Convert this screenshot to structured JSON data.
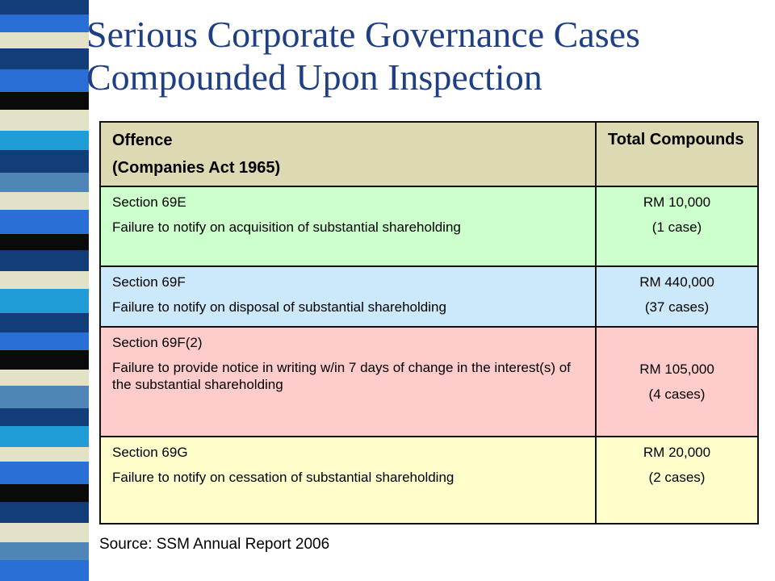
{
  "title": "Serious Corporate Governance Cases Compounded Upon Inspection",
  "table": {
    "header": {
      "offence_line1": "Offence",
      "offence_line2": "(Companies Act 1965)",
      "total": "Total Compounds"
    },
    "rows": [
      {
        "section": "Section 69E",
        "description": "Failure to notify on acquisition of substantial shareholding",
        "amount": "RM 10,000",
        "cases": "(1 case)",
        "bg": "#ccffcc"
      },
      {
        "section": "Section 69F",
        "description": "Failure to notify on disposal of substantial shareholding",
        "amount": "RM 440,000",
        "cases": "(37 cases)",
        "bg": "#cce8fb"
      },
      {
        "section": "Section 69F(2)",
        "description": "Failure to provide notice in writing w/in 7 days of change in the interest(s) of the substantial shareholding",
        "amount": "RM 105,000",
        "cases": "(4 cases)",
        "bg": "#ffcccc"
      },
      {
        "section": "Section 69G",
        "description": "Failure to notify on cessation of substantial shareholding",
        "amount": "RM 20,000",
        "cases": "(2 cases)",
        "bg": "#ffffcc"
      }
    ]
  },
  "source": "Source: SSM Annual Report 2006",
  "colors": {
    "title": "#1f3f84",
    "header_bg": "#ddd9b2",
    "stripe": [
      "#123d78",
      "#2a6fd6",
      "#e3e2c6",
      "#0a0a0a",
      "#1f9bd6",
      "#4f86b5"
    ]
  }
}
